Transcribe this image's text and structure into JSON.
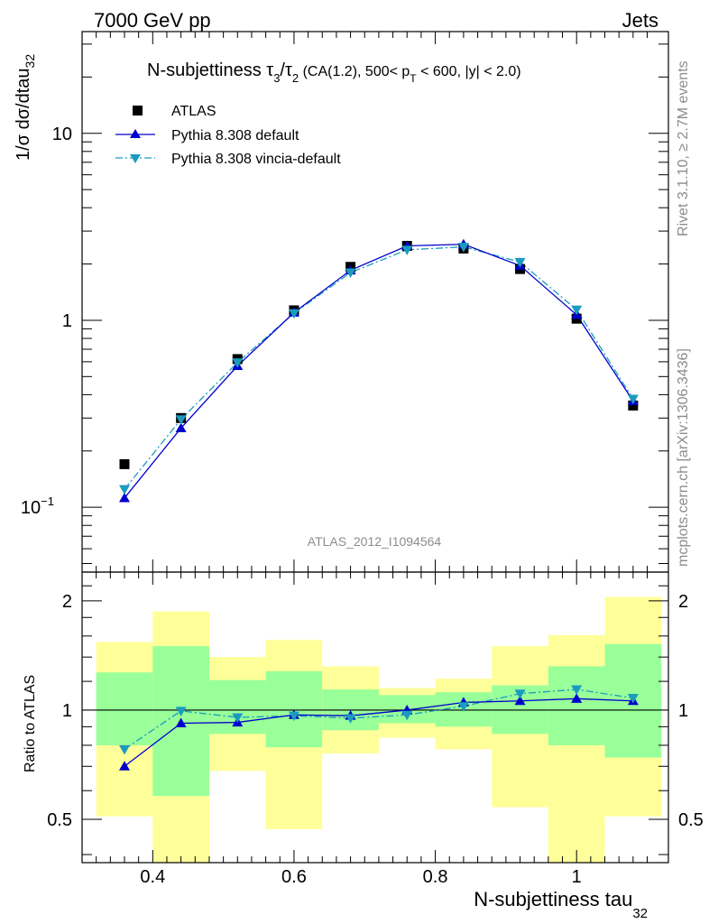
{
  "header": {
    "energy_label": "7000 GeV pp",
    "process_label": "Jets"
  },
  "side_labels": {
    "rivet": "Rivet 3.1.10, ≥ 2.7M events",
    "mcplots": "mcplots.cern.ch [arXiv:1306.3436]"
  },
  "main_plot": {
    "ylabel_main": "1/σ dσ/dtau",
    "ylabel_sub": "32",
    "title_prefix": "N-subjettiness τ",
    "title_sub1": "3",
    "title_mid": "/τ",
    "title_sub2": "2",
    "title_cuts_a": " (CA(1.2), 500< p",
    "title_cuts_sub": "T",
    "title_cuts_b": " < 600, |y| < 2.0)",
    "analysis_id": "ATLAS_2012_I1094564",
    "ytick_labels": {
      "t10": "10",
      "t1": "1",
      "t01_base": "10",
      "t01_exp": "−1"
    }
  },
  "ratio_plot": {
    "ylabel": "Ratio to ATLAS",
    "ytick_labels": [
      "0.5",
      "1",
      "2"
    ]
  },
  "x_axis": {
    "label_main": "N-subjettiness tau",
    "label_sub": "32",
    "tick_labels": [
      "0.4",
      "0.6",
      "0.8",
      "1"
    ]
  },
  "colors": {
    "atlas": "#000000",
    "pythia_default": "#0000cc",
    "pythia_vincia": "#1a9bbf",
    "band_inner": "#99ff99",
    "band_outer": "#ffff99"
  },
  "chart_data": [
    {
      "type": "scatter",
      "panel": "main",
      "title": "N-subjettiness τ3/τ2 (CA(1.2), 500< pT < 600, |y| < 2.0)",
      "xlabel": "N-subjettiness tau32",
      "ylabel": "1/σ dσ/dtau32",
      "xlim": [
        0.3,
        1.13
      ],
      "ylim": [
        0.045,
        35
      ],
      "yscale": "log",
      "legend_position": "top-left",
      "x": [
        0.36,
        0.44,
        0.52,
        0.6,
        0.68,
        0.76,
        0.84,
        0.92,
        1.0,
        1.08
      ],
      "series": [
        {
          "name": "ATLAS",
          "style": "square-markers",
          "values": [
            0.17,
            0.3,
            0.62,
            1.13,
            1.93,
            2.5,
            2.42,
            1.88,
            1.02,
            0.35
          ]
        },
        {
          "name": "Pythia 8.308 default",
          "style": "solid-line-triangle-up",
          "values": [
            0.112,
            0.265,
            0.57,
            1.1,
            1.85,
            2.5,
            2.55,
            1.96,
            1.07,
            0.37
          ]
        },
        {
          "name": "Pythia 8.308 vincia-default",
          "style": "dashdot-line-triangle-down",
          "values": [
            0.125,
            0.295,
            0.595,
            1.09,
            1.8,
            2.38,
            2.47,
            2.05,
            1.14,
            0.38
          ]
        }
      ]
    },
    {
      "type": "line",
      "panel": "ratio",
      "ylabel": "Ratio to ATLAS",
      "xlabel": "N-subjettiness tau32",
      "xlim": [
        0.3,
        1.13
      ],
      "ylim": [
        0.38,
        2.4
      ],
      "yscale": "log",
      "bin_edges": [
        0.32,
        0.4,
        0.48,
        0.56,
        0.64,
        0.72,
        0.8,
        0.88,
        0.96,
        1.04,
        1.12
      ],
      "band_inner_low": [
        0.8,
        0.58,
        0.86,
        0.79,
        0.88,
        0.92,
        0.9,
        0.86,
        0.8,
        0.74
      ],
      "band_inner_high": [
        1.27,
        1.5,
        1.21,
        1.28,
        1.14,
        1.1,
        1.12,
        1.17,
        1.32,
        1.52
      ],
      "band_outer_low": [
        0.51,
        0.3,
        0.68,
        0.47,
        0.76,
        0.84,
        0.78,
        0.54,
        0.3,
        0.51
      ],
      "band_outer_high": [
        1.54,
        1.87,
        1.4,
        1.56,
        1.32,
        1.15,
        1.22,
        1.5,
        1.61,
        2.05
      ],
      "x": [
        0.36,
        0.44,
        0.52,
        0.6,
        0.68,
        0.76,
        0.84,
        0.92,
        1.0,
        1.08
      ],
      "series": [
        {
          "name": "Pythia 8.308 default",
          "values": [
            0.7,
            0.92,
            0.925,
            0.97,
            0.965,
            1.0,
            1.05,
            1.06,
            1.075,
            1.06
          ]
        },
        {
          "name": "Pythia 8.308 vincia-default",
          "values": [
            0.78,
            0.995,
            0.955,
            0.965,
            0.95,
            0.97,
            1.025,
            1.11,
            1.14,
            1.08
          ]
        }
      ]
    }
  ]
}
